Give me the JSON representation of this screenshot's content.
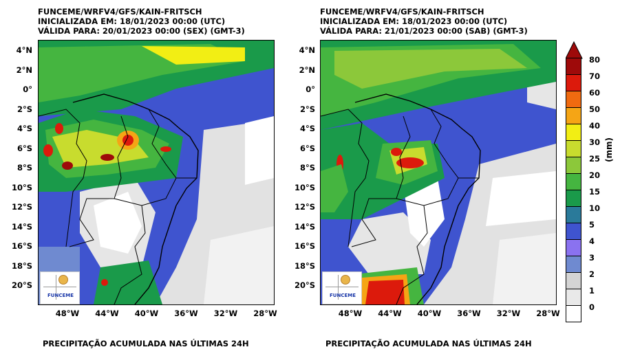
{
  "panels": [
    {
      "header_line1": "FUNCEME/WRFV4/GFS/KAIN-FRITSCH",
      "header_line2": "INICIALIZADA EM: 18/01/2023 00:00 (UTC)",
      "header_line3": "VÁLIDA PARA: 20/01/2023 00:00 (SEX) (GMT-3)",
      "footer": "PRECIPITAÇÃO ACUMULADA NAS ÚLTIMAS 24H",
      "logo_text": "FUNCEME"
    },
    {
      "header_line1": "FUNCEME/WRFV4/GFS/KAIN-FRITSCH",
      "header_line2": "INICIALIZADA EM: 18/01/2023 00:00 (UTC)",
      "header_line3": "VÁLIDA PARA: 21/01/2023 00:00 (SAB) (GMT-3)",
      "footer": "PRECIPITAÇÃO ACUMULADA NAS ÚLTIMAS 24H",
      "logo_text": "FUNCEME"
    }
  ],
  "lat_labels": [
    "4°N",
    "2°N",
    "0°",
    "2°S",
    "4°S",
    "6°S",
    "8°S",
    "10°S",
    "12°S",
    "14°S",
    "16°S",
    "18°S",
    "20°S"
  ],
  "lon_labels": [
    "48°W",
    "44°W",
    "40°W",
    "36°W",
    "32°W",
    "28°W"
  ],
  "colorbar": {
    "unit": "(mm)",
    "levels": [
      "0",
      "1",
      "2",
      "3",
      "4",
      "5",
      "10",
      "15",
      "20",
      "25",
      "30",
      "40",
      "50",
      "60",
      "70",
      "80"
    ],
    "colors": [
      "#ffffff",
      "#e9e9e9",
      "#d4d4d4",
      "#6f8ad0",
      "#8a72f0",
      "#3f54cf",
      "#2a7a9a",
      "#1a9a4a",
      "#45b540",
      "#8cc83a",
      "#c8dc2e",
      "#f2ee14",
      "#f5a515",
      "#f06a10",
      "#dc1a0c",
      "#9e0a0a"
    ]
  }
}
